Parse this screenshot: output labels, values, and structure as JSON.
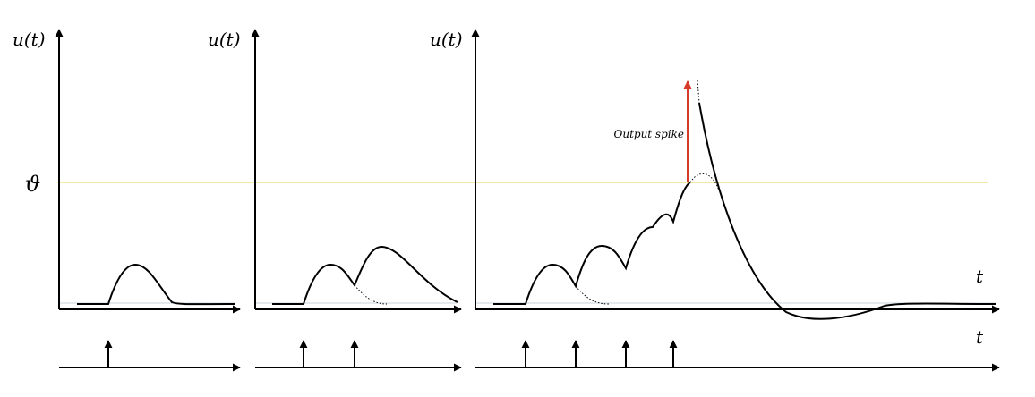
{
  "labels": {
    "y_axis_1": "u(t)",
    "y_axis_2": "u(t)",
    "y_axis_3": "u(t)",
    "threshold": "ϑ",
    "time_upper": "t",
    "time_lower": "t",
    "output_spike": "Output spike"
  },
  "colors": {
    "axis": "#000000",
    "curve": "#000000",
    "threshold_line": "#f3e9a2",
    "resting_line": "#c9d3dc",
    "output_spike_arrow": "#d63b2a"
  }
}
